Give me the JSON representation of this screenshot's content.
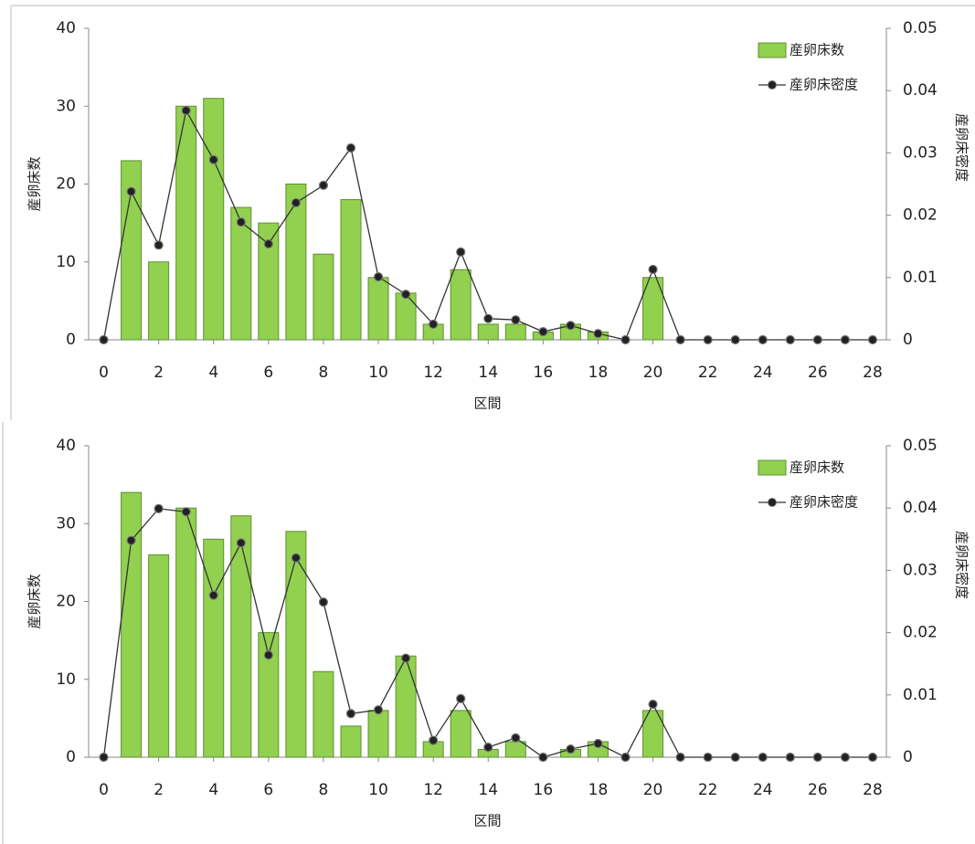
{
  "chart_data": [
    {
      "type": "bar",
      "x_label": "区間",
      "y_label": "産卵床数",
      "y2_label": "産卵床密度",
      "x": [
        0,
        1,
        2,
        3,
        4,
        5,
        6,
        7,
        8,
        9,
        10,
        11,
        12,
        13,
        14,
        15,
        16,
        17,
        18,
        19,
        20,
        21,
        22,
        23,
        24,
        25,
        26,
        27,
        28
      ],
      "series": [
        {
          "name": "産卵床数",
          "type": "bar",
          "color": "#92d050",
          "values": [
            0,
            23,
            10,
            30,
            31,
            17,
            15,
            20,
            11,
            18,
            8,
            6,
            2,
            9,
            2,
            2,
            1,
            2,
            1,
            0,
            8,
            0,
            0,
            0,
            0,
            0,
            0,
            0,
            0
          ]
        },
        {
          "name": "産卵床密度",
          "type": "line",
          "axis": "y2",
          "color": "#333333",
          "values": [
            0,
            0.0238,
            0.0152,
            0.0368,
            0.0289,
            0.0189,
            0.0154,
            0.022,
            0.0248,
            0.0308,
            0.0101,
            0.0073,
            0.0025,
            0.0141,
            0.0034,
            0.0032,
            0.0013,
            0.0023,
            0.001,
            0,
            0.0113,
            0,
            0,
            0,
            0,
            0,
            0,
            0,
            0
          ]
        }
      ],
      "xlim": [
        -0.55,
        28.5
      ],
      "xticks": [
        0,
        2,
        4,
        6,
        8,
        10,
        12,
        14,
        16,
        18,
        20,
        22,
        24,
        26,
        28
      ],
      "ylim": [
        0,
        40
      ],
      "yticks": [
        0,
        10,
        20,
        30,
        40
      ],
      "y2lim": [
        0,
        0.05
      ],
      "y2ticks": [
        0,
        0.01,
        0.02,
        0.03,
        0.04,
        0.05
      ],
      "legend": "upper right"
    },
    {
      "type": "bar",
      "x_label": "区間",
      "y_label": "産卵床数",
      "y2_label": "産卵床密度",
      "x": [
        0,
        1,
        2,
        3,
        4,
        5,
        6,
        7,
        8,
        9,
        10,
        11,
        12,
        13,
        14,
        15,
        16,
        17,
        18,
        19,
        20,
        21,
        22,
        23,
        24,
        25,
        26,
        27,
        28
      ],
      "series": [
        {
          "name": "産卵床数",
          "type": "bar",
          "color": "#92d050",
          "values": [
            0,
            34,
            26,
            32,
            28,
            31,
            16,
            29,
            11,
            4,
            6,
            13,
            2,
            6,
            1,
            2,
            0,
            1,
            2,
            0,
            6,
            0,
            0,
            0,
            0,
            0,
            0,
            0,
            0
          ]
        },
        {
          "name": "産卵床密度",
          "type": "line",
          "axis": "y2",
          "color": "#333333",
          "values": [
            0,
            0.0348,
            0.0399,
            0.0394,
            0.026,
            0.0344,
            0.0164,
            0.032,
            0.0249,
            0.007,
            0.0076,
            0.0159,
            0.0027,
            0.0094,
            0.0016,
            0.0031,
            0,
            0.0013,
            0.0022,
            0,
            0.0085,
            0,
            0,
            0,
            0,
            0,
            0,
            0,
            0
          ]
        }
      ],
      "xlim": [
        -0.55,
        28.5
      ],
      "xticks": [
        0,
        2,
        4,
        6,
        8,
        10,
        12,
        14,
        16,
        18,
        20,
        22,
        24,
        26,
        28
      ],
      "ylim": [
        0,
        40
      ],
      "yticks": [
        0,
        10,
        20,
        30,
        40
      ],
      "y2lim": [
        0,
        0.05
      ],
      "y2ticks": [
        0,
        0.01,
        0.02,
        0.03,
        0.04,
        0.05
      ],
      "legend": "upper right"
    }
  ]
}
